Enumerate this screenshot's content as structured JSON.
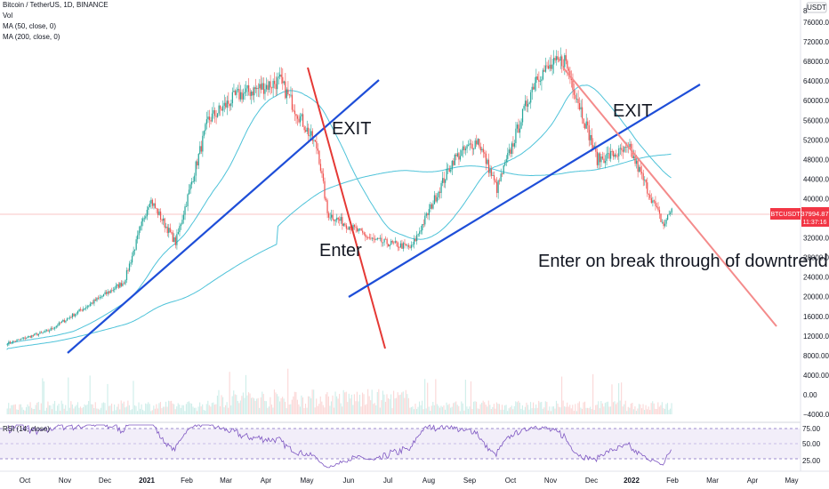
{
  "header": {
    "symbol_line": "Bitcoin / TetherUS, 1D, BINANCE",
    "indicators": [
      "Vol",
      "MA (50, close, 0)",
      "MA (200, close, 0)"
    ]
  },
  "currency_badge": "USDT",
  "scale_mark": "8",
  "price_axis_labels": [
    "76000.00",
    "72000.00",
    "68000.00",
    "64000.00",
    "60000.00",
    "56000.00",
    "52000.00",
    "48000.00",
    "44000.00",
    "40000.00",
    "36000.00",
    "32000.00",
    "28000.00",
    "24000.00",
    "20000.00",
    "16000.00",
    "12000.00",
    "8000.00",
    "4000.00",
    "0.00",
    "−4000.00"
  ],
  "price_tag": {
    "symbol": "BTCUSDT",
    "price": "37994.87",
    "countdown": "11:37:16",
    "color": "#f23645"
  },
  "annotations": {
    "exit_1": "EXIT",
    "enter_1": "Enter",
    "exit_2": "EXIT",
    "enter_2": "Enter on break through of downtrend"
  },
  "rsi": {
    "label": "RSI (14, close)",
    "levels": [
      "75.00",
      "50.00",
      "25.00"
    ]
  },
  "time_axis_labels": [
    "Oct",
    "Nov",
    "Dec",
    "2021",
    "Feb",
    "Mar",
    "Apr",
    "May",
    "Jun",
    "Jul",
    "Aug",
    "Sep",
    "Oct",
    "Nov",
    "Dec",
    "2022",
    "Feb",
    "Mar",
    "Apr",
    "May"
  ],
  "colors": {
    "up": "#26a69a",
    "down": "#ef5350",
    "trend_up": "#1e4ed8",
    "trend_down": "#e53935",
    "trend_down_light": "#f48b8b",
    "ma": "#4fc3d9",
    "rsi": "#7e57c2"
  },
  "chart_data": {
    "type": "line",
    "title": "Bitcoin / TetherUS, 1D, BINANCE",
    "x": [
      "2020-09-25",
      "2020-10-25",
      "2020-11-25",
      "2020-12-20",
      "2021-01-08",
      "2021-01-27",
      "2021-02-20",
      "2021-03-13",
      "2021-04-14",
      "2021-05-12",
      "2021-05-19",
      "2021-06-22",
      "2021-07-20",
      "2021-08-20",
      "2021-09-07",
      "2021-09-21",
      "2021-10-20",
      "2021-11-10",
      "2021-12-04",
      "2021-12-28",
      "2022-01-10",
      "2022-01-22",
      "2022-01-28"
    ],
    "series": [
      {
        "name": "BTCUSDT",
        "values": [
          10500,
          13000,
          18500,
          23000,
          40000,
          31000,
          56000,
          61000,
          64000,
          50000,
          37000,
          31500,
          30000,
          48000,
          52000,
          42000,
          65000,
          68500,
          48000,
          50000,
          42000,
          34500,
          37995
        ]
      }
    ],
    "ylim": [
      -4000,
      78000
    ],
    "xlabel": "",
    "ylabel": ""
  }
}
